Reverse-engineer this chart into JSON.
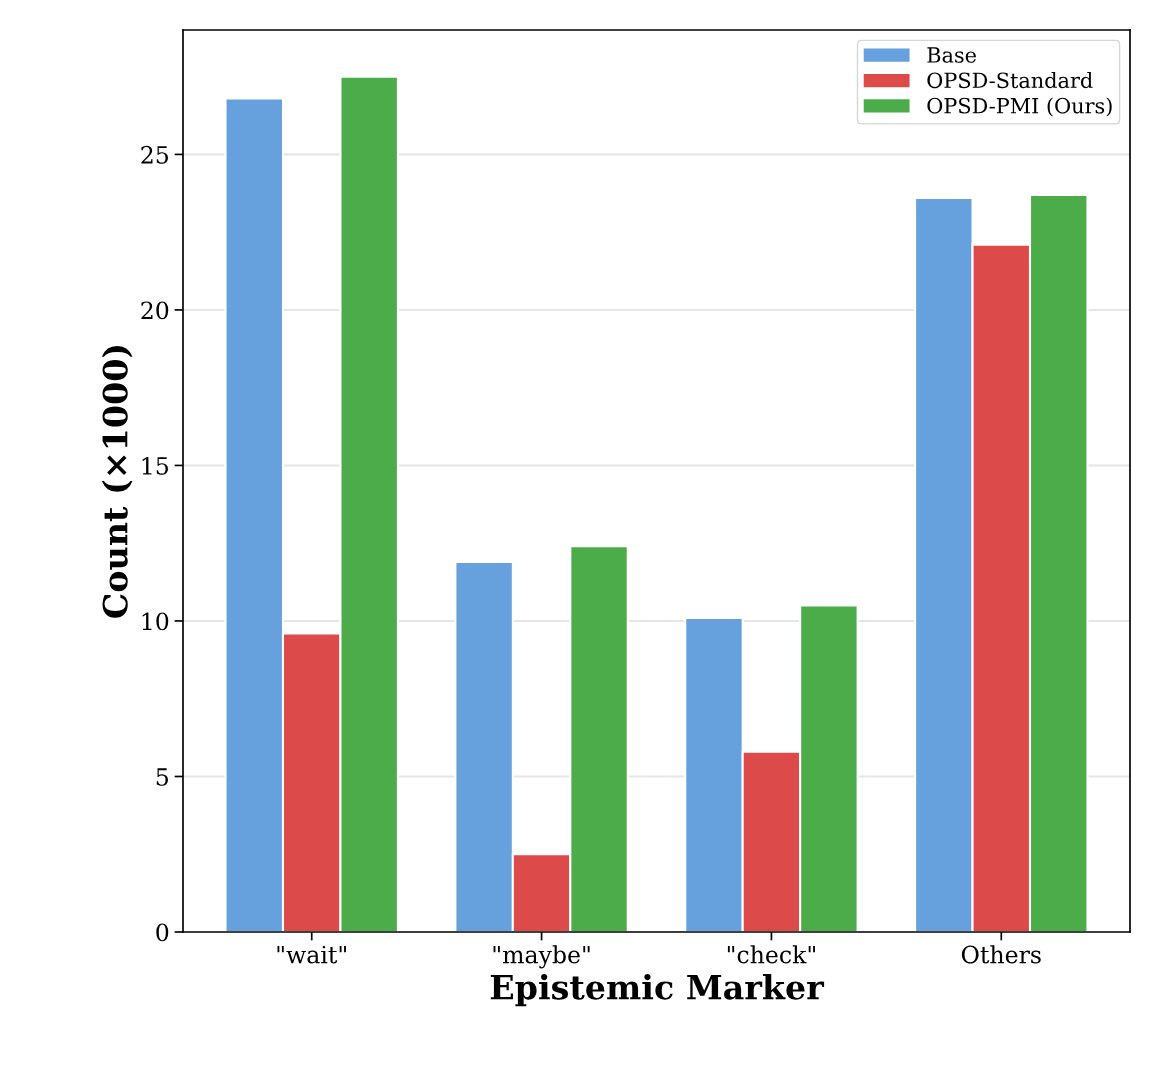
{
  "chart_data": {
    "type": "bar",
    "xlabel": "Epistemic Marker",
    "ylabel": "Count (×1000)",
    "categories": [
      "\"wait\"",
      "\"maybe\"",
      "\"check\"",
      "Others"
    ],
    "series": [
      {
        "name": "Base",
        "color": "#66a0dd",
        "values": [
          26.8,
          11.9,
          10.1,
          23.6
        ]
      },
      {
        "name": "OPSD-Standard",
        "color": "#dc4a4a",
        "values": [
          9.6,
          2.5,
          5.8,
          22.1
        ]
      },
      {
        "name": "OPSD-PMI (Ours)",
        "color": "#4dac4a",
        "values": [
          27.5,
          12.4,
          10.5,
          23.7
        ]
      }
    ],
    "ylim": [
      0,
      29
    ],
    "yticks": [
      0,
      5,
      10,
      15,
      20,
      25
    ],
    "grid": "y",
    "legend": "top right"
  }
}
